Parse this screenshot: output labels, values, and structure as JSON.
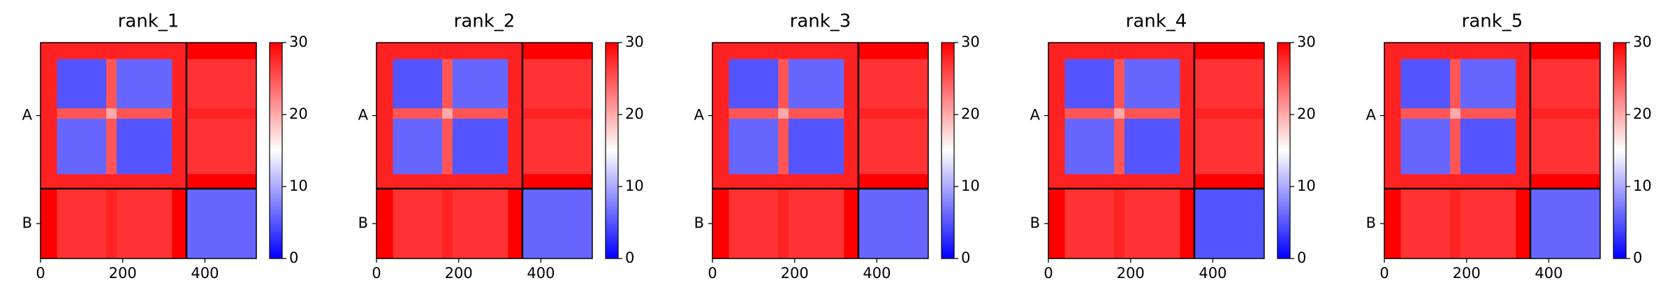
{
  "chart_data": [
    {
      "type": "heatmap",
      "title": "rank_1",
      "xbins": [
        0,
        40,
        160,
        185,
        320,
        355,
        525
      ],
      "ybins": [
        0,
        40,
        160,
        185,
        320,
        355,
        525
      ],
      "z": [
        [
          28,
          28,
          28,
          28,
          28,
          30
        ],
        [
          28,
          5,
          25,
          6,
          28,
          27
        ],
        [
          28,
          25,
          20,
          25,
          28,
          28
        ],
        [
          28,
          6,
          25,
          5,
          28,
          27
        ],
        [
          28,
          28,
          28,
          28,
          28,
          30
        ],
        [
          30,
          27,
          28,
          27,
          30,
          6
        ]
      ],
      "xlim": [
        0,
        525
      ],
      "xticks": [
        0,
        200,
        400
      ],
      "ylim": [
        525,
        0
      ],
      "yticks": [
        {
          "value": 177.5,
          "label": "A"
        },
        {
          "value": 440,
          "label": "B"
        }
      ],
      "chain_breaks": [
        355
      ],
      "zlim": [
        0,
        30
      ],
      "zticks": [
        0,
        10,
        20,
        30
      ],
      "colors": [
        "#0000ff",
        "#ffffff",
        "#ff0000"
      ]
    },
    {
      "type": "heatmap",
      "title": "rank_2",
      "xbins": [
        0,
        40,
        160,
        185,
        320,
        355,
        525
      ],
      "ybins": [
        0,
        40,
        160,
        185,
        320,
        355,
        525
      ],
      "z": [
        [
          28,
          28,
          28,
          28,
          28,
          30
        ],
        [
          28,
          5,
          25,
          6,
          28,
          27
        ],
        [
          28,
          25,
          20,
          25,
          28,
          28
        ],
        [
          28,
          6,
          25,
          5,
          28,
          27
        ],
        [
          28,
          28,
          28,
          28,
          28,
          30
        ],
        [
          30,
          27,
          28,
          27,
          30,
          6
        ]
      ],
      "xlim": [
        0,
        525
      ],
      "xticks": [
        0,
        200,
        400
      ],
      "ylim": [
        525,
        0
      ],
      "yticks": [
        {
          "value": 177.5,
          "label": "A"
        },
        {
          "value": 440,
          "label": "B"
        }
      ],
      "chain_breaks": [
        355
      ],
      "zlim": [
        0,
        30
      ],
      "zticks": [
        0,
        10,
        20,
        30
      ],
      "colors": [
        "#0000ff",
        "#ffffff",
        "#ff0000"
      ]
    },
    {
      "type": "heatmap",
      "title": "rank_3",
      "xbins": [
        0,
        40,
        160,
        185,
        320,
        355,
        525
      ],
      "ybins": [
        0,
        40,
        160,
        185,
        320,
        355,
        525
      ],
      "z": [
        [
          28,
          28,
          28,
          28,
          28,
          30
        ],
        [
          28,
          5,
          25,
          6,
          28,
          27
        ],
        [
          28,
          25,
          20,
          25,
          28,
          28
        ],
        [
          28,
          6,
          25,
          5,
          28,
          27
        ],
        [
          28,
          28,
          28,
          28,
          28,
          30
        ],
        [
          30,
          27,
          28,
          27,
          30,
          6
        ]
      ],
      "xlim": [
        0,
        525
      ],
      "xticks": [
        0,
        200,
        400
      ],
      "ylim": [
        525,
        0
      ],
      "yticks": [
        {
          "value": 177.5,
          "label": "A"
        },
        {
          "value": 440,
          "label": "B"
        }
      ],
      "chain_breaks": [
        355
      ],
      "zlim": [
        0,
        30
      ],
      "zticks": [
        0,
        10,
        20,
        30
      ],
      "colors": [
        "#0000ff",
        "#ffffff",
        "#ff0000"
      ]
    },
    {
      "type": "heatmap",
      "title": "rank_4",
      "xbins": [
        0,
        40,
        160,
        185,
        320,
        355,
        525
      ],
      "ybins": [
        0,
        40,
        160,
        185,
        320,
        355,
        525
      ],
      "z": [
        [
          28,
          28,
          28,
          28,
          28,
          30
        ],
        [
          28,
          5,
          25,
          6,
          28,
          27
        ],
        [
          28,
          25,
          20,
          25,
          28,
          28
        ],
        [
          28,
          6,
          25,
          5,
          28,
          27
        ],
        [
          28,
          28,
          28,
          28,
          28,
          30
        ],
        [
          30,
          27,
          28,
          27,
          30,
          5
        ]
      ],
      "xlim": [
        0,
        525
      ],
      "xticks": [
        0,
        200,
        400
      ],
      "ylim": [
        525,
        0
      ],
      "yticks": [
        {
          "value": 177.5,
          "label": "A"
        },
        {
          "value": 440,
          "label": "B"
        }
      ],
      "chain_breaks": [
        355
      ],
      "zlim": [
        0,
        30
      ],
      "zticks": [
        0,
        10,
        20,
        30
      ],
      "colors": [
        "#0000ff",
        "#ffffff",
        "#ff0000"
      ]
    },
    {
      "type": "heatmap",
      "title": "rank_5",
      "xbins": [
        0,
        40,
        160,
        185,
        320,
        355,
        525
      ],
      "ybins": [
        0,
        40,
        160,
        185,
        320,
        355,
        525
      ],
      "z": [
        [
          28,
          28,
          28,
          28,
          28,
          30
        ],
        [
          28,
          5,
          25,
          6,
          28,
          27
        ],
        [
          28,
          25,
          20,
          25,
          28,
          28
        ],
        [
          28,
          6,
          25,
          5,
          28,
          27
        ],
        [
          28,
          28,
          28,
          28,
          28,
          30
        ],
        [
          30,
          27,
          28,
          27,
          30,
          6
        ]
      ],
      "xlim": [
        0,
        525
      ],
      "xticks": [
        0,
        200,
        400
      ],
      "ylim": [
        525,
        0
      ],
      "yticks": [
        {
          "value": 177.5,
          "label": "A"
        },
        {
          "value": 440,
          "label": "B"
        }
      ],
      "chain_breaks": [
        355
      ],
      "zlim": [
        0,
        30
      ],
      "zticks": [
        0,
        10,
        20,
        30
      ],
      "colors": [
        "#0000ff",
        "#ffffff",
        "#ff0000"
      ]
    }
  ]
}
